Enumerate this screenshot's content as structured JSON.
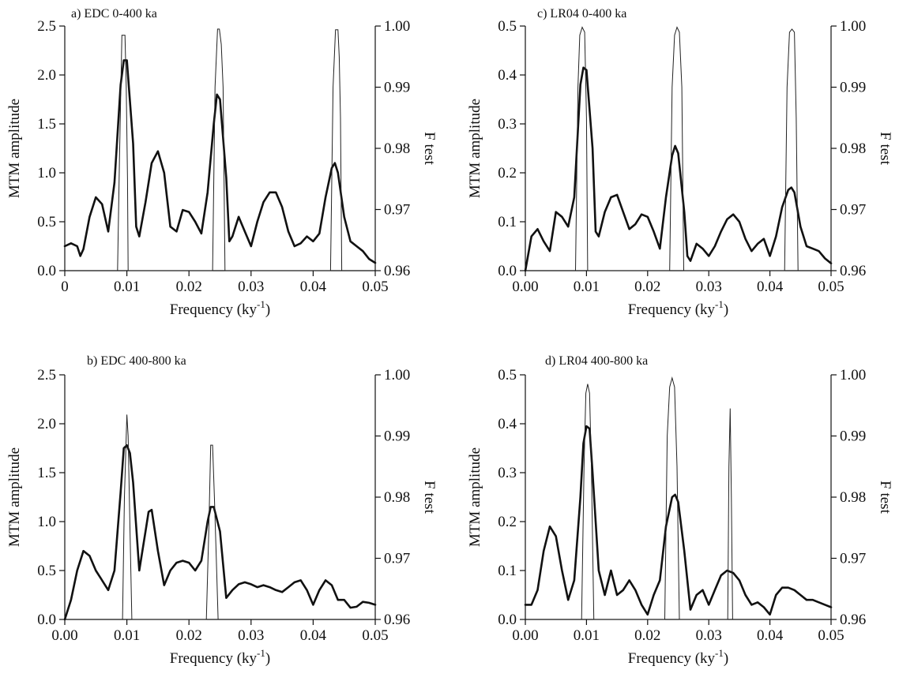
{
  "chart_data": [
    {
      "type": "line",
      "title": "a) EDC 0-400 ka",
      "xlabel": "Frequency (ky",
      "xlabel_sup": "-1",
      "xlabel_close": ")",
      "ylabel": "MTM amplitude",
      "y2label": "F test",
      "xlim": [
        0,
        0.05
      ],
      "ylim": [
        0,
        2.5
      ],
      "y2lim": [
        0.96,
        1.0
      ],
      "x_ticks": [
        0,
        0.01,
        0.02,
        0.03,
        0.04,
        0.05
      ],
      "x_tick_labels": [
        "0",
        "0.01",
        "0.02",
        "0.03",
        "0.04",
        "0.05"
      ],
      "y_ticks": [
        0,
        0.5,
        1.0,
        1.5,
        2.0,
        2.5
      ],
      "y_tick_labels": [
        "0.0",
        "0.5",
        "1.0",
        "1.5",
        "2.0",
        "2.5"
      ],
      "y2_ticks": [
        0.96,
        0.97,
        0.98,
        0.99,
        1.0
      ],
      "y2_tick_labels": [
        "0.96",
        "0.97",
        "0.98",
        "0.99",
        "1.00"
      ],
      "series": [
        {
          "role": "amplitude",
          "x": [
            0,
            0.001,
            0.002,
            0.0025,
            0.003,
            0.004,
            0.005,
            0.006,
            0.007,
            0.008,
            0.009,
            0.0095,
            0.01,
            0.011,
            0.0115,
            0.012,
            0.013,
            0.014,
            0.015,
            0.016,
            0.017,
            0.018,
            0.019,
            0.02,
            0.021,
            0.022,
            0.023,
            0.024,
            0.0245,
            0.025,
            0.026,
            0.0265,
            0.027,
            0.028,
            0.029,
            0.03,
            0.031,
            0.032,
            0.033,
            0.034,
            0.035,
            0.036,
            0.037,
            0.038,
            0.039,
            0.04,
            0.041,
            0.042,
            0.043,
            0.0435,
            0.044,
            0.045,
            0.046,
            0.047,
            0.048,
            0.049,
            0.05
          ],
          "y": [
            0.25,
            0.28,
            0.25,
            0.15,
            0.22,
            0.55,
            0.75,
            0.68,
            0.4,
            0.9,
            1.9,
            2.15,
            2.15,
            1.3,
            0.45,
            0.35,
            0.7,
            1.1,
            1.22,
            1.0,
            0.45,
            0.4,
            0.62,
            0.6,
            0.5,
            0.38,
            0.8,
            1.5,
            1.8,
            1.75,
            0.95,
            0.3,
            0.35,
            0.55,
            0.4,
            0.25,
            0.5,
            0.7,
            0.8,
            0.8,
            0.65,
            0.4,
            0.25,
            0.28,
            0.35,
            0.3,
            0.38,
            0.75,
            1.05,
            1.1,
            1.0,
            0.55,
            0.3,
            0.25,
            0.2,
            0.12,
            0.08
          ]
        },
        {
          "role": "ftest",
          "x": [
            0.0085,
            0.0088,
            0.0092,
            0.0097,
            0.0099,
            0.0101,
            0.0102,
            0.0238,
            0.0242,
            0.0246,
            0.0249,
            0.0252,
            0.0255,
            0.0258,
            0.0428,
            0.0432,
            0.0436,
            0.044,
            0.0442,
            0.0444,
            0.0446
          ],
          "y": [
            0.96,
            0.978,
            0.9985,
            0.9985,
            0.99,
            0.975,
            0.96,
            0.96,
            0.99,
            0.9995,
            0.9995,
            0.997,
            0.99,
            0.96,
            0.96,
            0.99,
            0.9994,
            0.9994,
            0.995,
            0.985,
            0.96
          ]
        }
      ]
    },
    {
      "type": "line",
      "title": "c) LR04 0-400 ka",
      "xlabel": "Frequency (ky",
      "xlabel_sup": "-1",
      "xlabel_close": ")",
      "ylabel": "MTM amplitude",
      "y2label": "F test",
      "xlim": [
        0,
        0.05
      ],
      "ylim": [
        0,
        0.5
      ],
      "y2lim": [
        0.96,
        1.0
      ],
      "x_ticks": [
        0,
        0.01,
        0.02,
        0.03,
        0.04,
        0.05
      ],
      "x_tick_labels": [
        "0.00",
        "0.01",
        "0.02",
        "0.03",
        "0.04",
        "0.05"
      ],
      "y_ticks": [
        0,
        0.1,
        0.2,
        0.3,
        0.4,
        0.5
      ],
      "y_tick_labels": [
        "0.0",
        "0.1",
        "0.2",
        "0.3",
        "0.4",
        "0.5"
      ],
      "y2_ticks": [
        0.96,
        0.97,
        0.98,
        0.99,
        1.0
      ],
      "y2_tick_labels": [
        "0.96",
        "0.97",
        "0.98",
        "0.99",
        "1.00"
      ],
      "series": [
        {
          "role": "amplitude",
          "x": [
            0,
            0.001,
            0.002,
            0.003,
            0.004,
            0.005,
            0.006,
            0.007,
            0.008,
            0.009,
            0.0095,
            0.01,
            0.011,
            0.0115,
            0.012,
            0.013,
            0.014,
            0.015,
            0.016,
            0.017,
            0.018,
            0.019,
            0.02,
            0.021,
            0.022,
            0.023,
            0.024,
            0.0245,
            0.025,
            0.026,
            0.0265,
            0.027,
            0.028,
            0.029,
            0.03,
            0.031,
            0.032,
            0.033,
            0.034,
            0.035,
            0.036,
            0.037,
            0.038,
            0.039,
            0.04,
            0.041,
            0.042,
            0.043,
            0.0435,
            0.044,
            0.045,
            0.046,
            0.047,
            0.048,
            0.049,
            0.05
          ],
          "y": [
            0.0,
            0.07,
            0.085,
            0.06,
            0.04,
            0.12,
            0.11,
            0.09,
            0.15,
            0.38,
            0.415,
            0.41,
            0.25,
            0.08,
            0.07,
            0.12,
            0.15,
            0.155,
            0.12,
            0.085,
            0.095,
            0.115,
            0.11,
            0.08,
            0.045,
            0.15,
            0.235,
            0.255,
            0.24,
            0.12,
            0.03,
            0.02,
            0.055,
            0.045,
            0.03,
            0.05,
            0.08,
            0.105,
            0.115,
            0.1,
            0.065,
            0.04,
            0.055,
            0.065,
            0.03,
            0.07,
            0.13,
            0.165,
            0.17,
            0.16,
            0.09,
            0.05,
            0.045,
            0.04,
            0.025,
            0.015
          ]
        },
        {
          "role": "ftest",
          "x": [
            0.0082,
            0.0086,
            0.0089,
            0.0093,
            0.0097,
            0.01,
            0.0102,
            0.0236,
            0.024,
            0.0244,
            0.0248,
            0.0252,
            0.0256,
            0.0259,
            0.0424,
            0.0428,
            0.0432,
            0.0436,
            0.044,
            0.0443,
            0.0446
          ],
          "y": [
            0.96,
            0.99,
            0.9985,
            0.9998,
            0.999,
            0.985,
            0.96,
            0.96,
            0.99,
            0.9985,
            0.9998,
            0.999,
            0.99,
            0.96,
            0.96,
            0.99,
            0.999,
            0.9995,
            0.999,
            0.985,
            0.96
          ]
        }
      ]
    },
    {
      "type": "line",
      "title": "b) EDC 400-800 ka",
      "xlabel": "Frequency (ky",
      "xlabel_sup": "-1",
      "xlabel_close": ")",
      "ylabel": "MTM amplitude",
      "y2label": "F test",
      "xlim": [
        0,
        0.05
      ],
      "ylim": [
        0,
        2.5
      ],
      "y2lim": [
        0.96,
        1.0
      ],
      "x_ticks": [
        0,
        0.01,
        0.02,
        0.03,
        0.04,
        0.05
      ],
      "x_tick_labels": [
        "0.00",
        "0.01",
        "0.02",
        "0.03",
        "0.04",
        "0.05"
      ],
      "y_ticks": [
        0,
        0.5,
        1.0,
        1.5,
        2.0,
        2.5
      ],
      "y_tick_labels": [
        "0.0",
        "0.5",
        "1.0",
        "1.5",
        "2.0",
        "2.5"
      ],
      "y2_ticks": [
        0.96,
        0.97,
        0.98,
        0.99,
        1.0
      ],
      "y2_tick_labels": [
        "0.96",
        "0.97",
        "0.98",
        "0.99",
        "1.00"
      ],
      "series": [
        {
          "role": "amplitude",
          "x": [
            0,
            0.001,
            0.002,
            0.003,
            0.004,
            0.005,
            0.006,
            0.007,
            0.008,
            0.009,
            0.0095,
            0.01,
            0.0105,
            0.011,
            0.012,
            0.013,
            0.0135,
            0.014,
            0.015,
            0.016,
            0.017,
            0.018,
            0.019,
            0.02,
            0.021,
            0.022,
            0.023,
            0.0235,
            0.024,
            0.025,
            0.026,
            0.027,
            0.028,
            0.029,
            0.03,
            0.031,
            0.032,
            0.033,
            0.034,
            0.035,
            0.036,
            0.037,
            0.038,
            0.039,
            0.04,
            0.041,
            0.042,
            0.043,
            0.044,
            0.045,
            0.046,
            0.047,
            0.048,
            0.049,
            0.05
          ],
          "y": [
            0.0,
            0.2,
            0.5,
            0.7,
            0.65,
            0.5,
            0.4,
            0.3,
            0.5,
            1.3,
            1.75,
            1.78,
            1.7,
            1.4,
            0.5,
            0.9,
            1.1,
            1.12,
            0.7,
            0.35,
            0.5,
            0.58,
            0.6,
            0.58,
            0.5,
            0.6,
            1.0,
            1.15,
            1.15,
            0.9,
            0.22,
            0.3,
            0.36,
            0.38,
            0.36,
            0.33,
            0.35,
            0.33,
            0.3,
            0.28,
            0.33,
            0.38,
            0.4,
            0.3,
            0.15,
            0.3,
            0.4,
            0.35,
            0.2,
            0.2,
            0.12,
            0.13,
            0.18,
            0.17,
            0.15
          ]
        },
        {
          "role": "ftest",
          "x": [
            0.0093,
            0.0096,
            0.0099,
            0.01,
            0.0102,
            0.0105,
            0.0108,
            0.0228,
            0.0232,
            0.0235,
            0.0238,
            0.0241,
            0.0244,
            0.0247
          ],
          "y": [
            0.96,
            0.98,
            0.99,
            0.9935,
            0.99,
            0.975,
            0.96,
            0.96,
            0.975,
            0.9885,
            0.9885,
            0.98,
            0.97,
            0.96
          ]
        }
      ]
    },
    {
      "type": "line",
      "title": "d) LR04 400-800 ka",
      "xlabel": "Frequency (ky",
      "xlabel_sup": "-1",
      "xlabel_close": ")",
      "ylabel": "MTM amplitude",
      "y2label": "F test",
      "xlim": [
        0,
        0.05
      ],
      "ylim": [
        0,
        0.5
      ],
      "y2lim": [
        0.96,
        1.0
      ],
      "x_ticks": [
        0,
        0.01,
        0.02,
        0.03,
        0.04,
        0.05
      ],
      "x_tick_labels": [
        "0.00",
        "0.01",
        "0.02",
        "0.03",
        "0.04",
        "0.05"
      ],
      "y_ticks": [
        0,
        0.1,
        0.2,
        0.3,
        0.4,
        0.5
      ],
      "y_tick_labels": [
        "0.0",
        "0.1",
        "0.2",
        "0.3",
        "0.4",
        "0.5"
      ],
      "y2_ticks": [
        0.96,
        0.97,
        0.98,
        0.99,
        1.0
      ],
      "y2_tick_labels": [
        "0.96",
        "0.97",
        "0.98",
        "0.99",
        "1.00"
      ],
      "series": [
        {
          "role": "amplitude",
          "x": [
            0,
            0.001,
            0.002,
            0.003,
            0.004,
            0.005,
            0.006,
            0.007,
            0.008,
            0.009,
            0.0095,
            0.01,
            0.0105,
            0.011,
            0.012,
            0.013,
            0.014,
            0.015,
            0.016,
            0.017,
            0.018,
            0.019,
            0.02,
            0.021,
            0.022,
            0.023,
            0.024,
            0.0245,
            0.025,
            0.026,
            0.027,
            0.028,
            0.029,
            0.03,
            0.031,
            0.032,
            0.033,
            0.034,
            0.035,
            0.036,
            0.037,
            0.038,
            0.039,
            0.04,
            0.041,
            0.042,
            0.043,
            0.044,
            0.045,
            0.046,
            0.047,
            0.048,
            0.049,
            0.05
          ],
          "y": [
            0.03,
            0.03,
            0.06,
            0.14,
            0.19,
            0.17,
            0.1,
            0.04,
            0.08,
            0.25,
            0.36,
            0.395,
            0.39,
            0.3,
            0.1,
            0.05,
            0.1,
            0.05,
            0.06,
            0.08,
            0.06,
            0.03,
            0.01,
            0.05,
            0.08,
            0.19,
            0.25,
            0.255,
            0.24,
            0.14,
            0.02,
            0.05,
            0.06,
            0.03,
            0.06,
            0.09,
            0.1,
            0.095,
            0.08,
            0.05,
            0.03,
            0.035,
            0.025,
            0.01,
            0.05,
            0.065,
            0.065,
            0.06,
            0.05,
            0.04,
            0.04,
            0.035,
            0.03,
            0.025
          ]
        },
        {
          "role": "ftest",
          "x": [
            0.0092,
            0.0096,
            0.0099,
            0.0102,
            0.0105,
            0.0108,
            0.0112,
            0.0228,
            0.0232,
            0.0236,
            0.024,
            0.0244,
            0.0248,
            0.0252,
            0.0331,
            0.0333,
            0.0335,
            0.0337,
            0.0339
          ],
          "y": [
            0.96,
            0.985,
            0.997,
            0.9985,
            0.997,
            0.985,
            0.96,
            0.96,
            0.99,
            0.998,
            0.9995,
            0.998,
            0.985,
            0.96,
            0.96,
            0.985,
            0.9945,
            0.98,
            0.96
          ]
        }
      ]
    }
  ]
}
